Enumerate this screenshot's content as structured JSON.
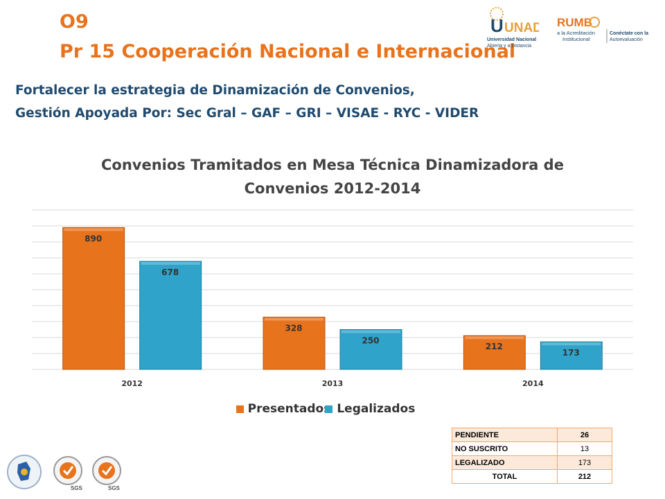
{
  "header": {
    "code": "O9",
    "title": "Pr 15 Cooperación Nacional e Internacional"
  },
  "subtitle": {
    "line1": "Fortalecer la estrategia de Dinamización de Convenios,",
    "line2": "Gestión Apoyada Por: Sec Gral – GAF – GRI – VISAE - RYC - VIDER"
  },
  "logos": {
    "unad_text": "UNAD",
    "unad_sub1": "Universidad Nacional",
    "unad_sub2": "Abierta y a Distancia",
    "rumbo_text": "RUMB",
    "rumbo_sub1": "a la Acreditación",
    "rumbo_sub2": "Institucional",
    "rumbo_right1": "Conéctate con la",
    "rumbo_right2": "Autoevaluación",
    "sgs1": "SGS",
    "sgs2": "SGS"
  },
  "colors": {
    "orange": "#e8731d",
    "blue": "#2fa3c9",
    "navy": "#1f4a6e"
  },
  "chart_data": {
    "type": "bar",
    "title_line1": "Convenios Tramitados en Mesa Técnica Dinamizadora de",
    "title_line2": "Convenios 2012-2014",
    "categories": [
      "2012",
      "2013",
      "2014"
    ],
    "series": [
      {
        "name": "Presentados",
        "values": [
          890,
          328,
          212
        ],
        "color": "#e8731d"
      },
      {
        "name": "Legalizados",
        "values": [
          678,
          250,
          173
        ],
        "color": "#2fa3c9"
      }
    ],
    "ylim": [
      0,
      1000
    ],
    "grid": true,
    "legend": "bottom",
    "data_labels": true
  },
  "summary_table": {
    "rows": [
      {
        "label": "PENDIENTE",
        "value": "26"
      },
      {
        "label": "NO SUSCRITO",
        "value": "13"
      },
      {
        "label": "LEGALIZADO",
        "value": "173"
      },
      {
        "label": "TOTAL",
        "value": "212"
      }
    ]
  }
}
